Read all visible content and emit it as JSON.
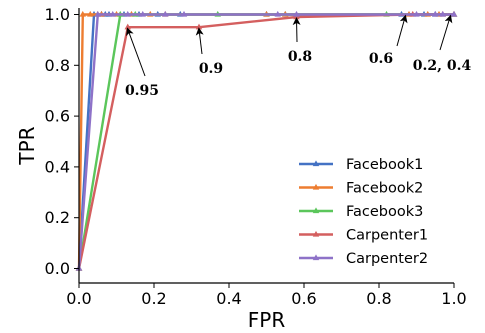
{
  "chart_data": {
    "type": "line",
    "xlabel": "FPR",
    "ylabel": "TPR",
    "xlim": [
      0.0,
      1.0
    ],
    "ylim": [
      0.0,
      1.0
    ],
    "xticks": [
      "0.0",
      "0.2",
      "0.4",
      "0.6",
      "0.8",
      "1.0"
    ],
    "yticks": [
      "0.0",
      "0.2",
      "0.4",
      "0.6",
      "0.8",
      "1.0"
    ],
    "grid": false,
    "legend_position": "lower-right",
    "series": [
      {
        "name": "Facebook1",
        "color": "#4472c4",
        "marker": "triangle-up",
        "x": [
          0.0,
          0.04,
          0.06,
          0.07,
          0.08,
          0.12,
          0.16,
          0.21,
          0.27,
          0.5,
          0.55,
          0.86,
          0.92,
          0.95,
          1.0
        ],
        "y": [
          0.0,
          1.0,
          1.0,
          1.0,
          1.0,
          1.0,
          1.0,
          1.0,
          1.0,
          1.0,
          1.0,
          1.0,
          1.0,
          1.0,
          1.0
        ]
      },
      {
        "name": "Facebook2",
        "color": "#ed7d31",
        "marker": "triangle-up",
        "x": [
          0.0,
          0.01,
          0.03,
          0.05,
          0.06,
          0.1,
          0.14,
          0.19,
          0.23,
          0.5,
          0.55,
          0.88,
          0.93,
          0.96,
          1.0
        ],
        "y": [
          0.0,
          1.0,
          1.0,
          1.0,
          1.0,
          1.0,
          1.0,
          1.0,
          1.0,
          1.0,
          1.0,
          1.0,
          1.0,
          1.0,
          1.0
        ]
      },
      {
        "name": "Facebook3",
        "color": "#5bc65b",
        "marker": "triangle-up",
        "x": [
          0.0,
          0.11,
          0.15,
          0.37,
          0.82,
          1.0
        ],
        "y": [
          0.0,
          1.0,
          1.0,
          1.0,
          1.0,
          1.0
        ]
      },
      {
        "name": "Carpenter1",
        "color": "#d45f5f",
        "marker": "triangle-up",
        "x": [
          0.0,
          0.13,
          0.32,
          0.58,
          0.89,
          0.97,
          1.0
        ],
        "y": [
          0.0,
          0.95,
          0.95,
          0.99,
          1.0,
          1.0,
          1.0
        ]
      },
      {
        "name": "Carpenter2",
        "color": "#8e72c8",
        "marker": "triangle-up",
        "x": [
          0.0,
          0.05,
          0.09,
          0.13,
          0.17,
          0.23,
          0.28,
          0.53,
          0.58,
          0.9,
          0.95,
          0.97,
          1.0
        ],
        "y": [
          0.0,
          1.0,
          1.0,
          1.0,
          1.0,
          1.0,
          1.0,
          1.0,
          1.0,
          1.0,
          1.0,
          1.0,
          1.0
        ]
      }
    ],
    "annotations": [
      {
        "text": "0.95",
        "x": 0.13,
        "y": 0.95
      },
      {
        "text": "0.9",
        "x": 0.32,
        "y": 0.95
      },
      {
        "text": "0.8",
        "x": 0.58,
        "y": 0.99
      },
      {
        "text": "0.6",
        "x": 0.87,
        "y": 1.0
      },
      {
        "text": "0.2, 0.4",
        "x": 0.99,
        "y": 1.0
      }
    ]
  }
}
